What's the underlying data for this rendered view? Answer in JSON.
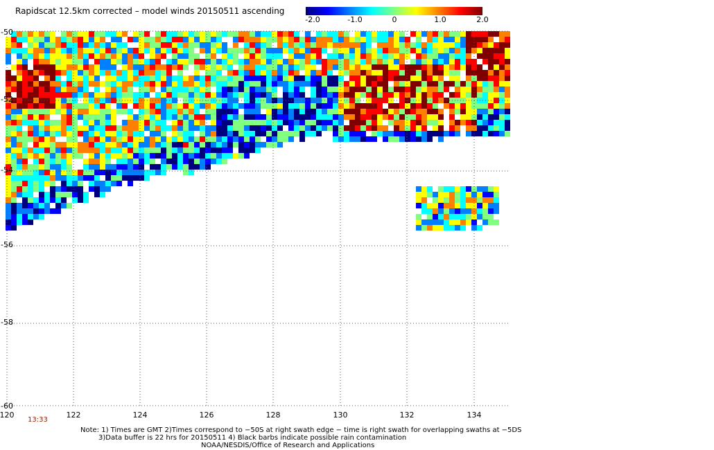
{
  "title": "Rapidscat 12.5km corrected – model winds 20150511 ascending",
  "colorbar": {
    "ticks": [
      "-2.0",
      "-1.0",
      "0",
      "1.0",
      "2.0"
    ],
    "min": -2.0,
    "max": 2.0,
    "colors": [
      "#00007f",
      "#0000ff",
      "#0080ff",
      "#00ffff",
      "#80ff80",
      "#ffff00",
      "#ff8000",
      "#ff0000",
      "#7f0000"
    ]
  },
  "map": {
    "lon_range": [
      120,
      135
    ],
    "lat_range": [
      -60,
      -50
    ],
    "lon_ticks": [
      "120",
      "122",
      "124",
      "126",
      "128",
      "130",
      "132",
      "134"
    ],
    "lat_ticks": [
      "-50",
      "-52",
      "-54",
      "-56",
      "-58",
      "-60"
    ],
    "grid": "dotted"
  },
  "time_label": "13:33",
  "notes": [
    "Note: 1) Times are GMT 2)Times correspond to −50S at right swath edge − time is right swath for overlapping swaths at −5DS",
    "3)Data buffer is 22 hrs for 20150511 4) Black barbs indicate possible rain contamination",
    "NOAA/NESDIS/Office of Research and Applications"
  ]
}
